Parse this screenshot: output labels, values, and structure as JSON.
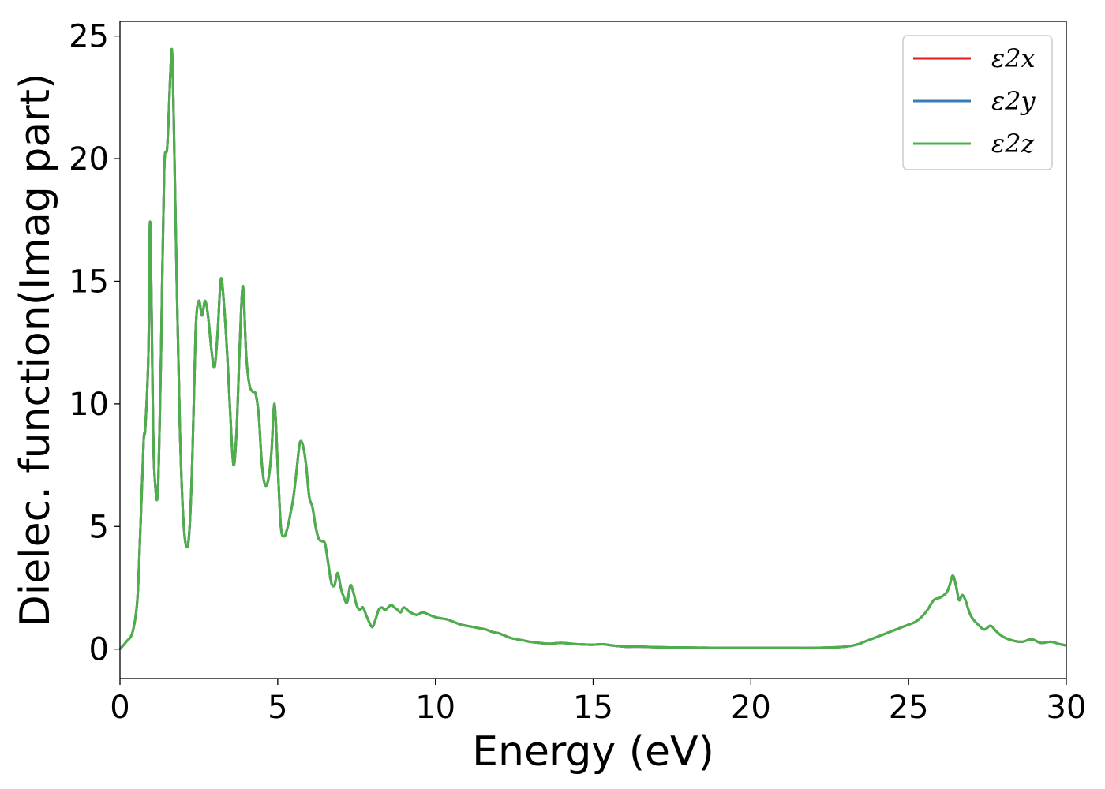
{
  "chart_data": {
    "type": "line",
    "title": "",
    "xlabel": "Energy (eV)",
    "ylabel": "Dielec. function(Imag part)",
    "xlim": [
      0,
      30
    ],
    "ylim": [
      -1.2,
      25.6
    ],
    "xticks": [
      0,
      5,
      10,
      15,
      20,
      25,
      30
    ],
    "yticks": [
      0,
      5,
      10,
      15,
      20,
      25
    ],
    "grid": false,
    "legend_position": "upper-right",
    "series": [
      {
        "name": "ε2x",
        "color": "#e41a1c"
      },
      {
        "name": "ε2y",
        "color": "#377eb8"
      },
      {
        "name": "ε2z",
        "color": "#4daf4a"
      }
    ],
    "x": [
      0,
      0.2,
      0.4,
      0.55,
      0.65,
      0.75,
      0.8,
      0.9,
      0.95,
      1.0,
      1.05,
      1.1,
      1.2,
      1.3,
      1.4,
      1.5,
      1.6,
      1.65,
      1.7,
      1.8,
      1.9,
      2.0,
      2.1,
      2.2,
      2.3,
      2.4,
      2.5,
      2.6,
      2.7,
      2.8,
      2.9,
      3.0,
      3.1,
      3.2,
      3.3,
      3.4,
      3.5,
      3.6,
      3.7,
      3.8,
      3.9,
      4.0,
      4.1,
      4.2,
      4.3,
      4.4,
      4.5,
      4.6,
      4.7,
      4.8,
      4.9,
      5.0,
      5.1,
      5.2,
      5.3,
      5.4,
      5.5,
      5.6,
      5.7,
      5.8,
      5.9,
      6.0,
      6.1,
      6.2,
      6.3,
      6.4,
      6.5,
      6.6,
      6.7,
      6.8,
      6.9,
      7.0,
      7.1,
      7.2,
      7.3,
      7.4,
      7.5,
      7.6,
      7.7,
      7.8,
      7.9,
      8.0,
      8.1,
      8.2,
      8.3,
      8.4,
      8.5,
      8.6,
      8.7,
      8.8,
      8.9,
      9.0,
      9.2,
      9.4,
      9.6,
      9.8,
      10.0,
      10.2,
      10.4,
      10.6,
      10.8,
      11.0,
      11.2,
      11.4,
      11.6,
      11.8,
      12.0,
      12.2,
      12.4,
      12.6,
      12.8,
      13.0,
      13.3,
      13.6,
      14.0,
      14.5,
      15.0,
      15.3,
      15.6,
      16.0,
      16.5,
      17.0,
      18.0,
      19.0,
      20.0,
      21.0,
      22.0,
      23.0,
      23.4,
      23.6,
      23.8,
      24.0,
      24.2,
      24.4,
      24.6,
      24.8,
      25.0,
      25.2,
      25.4,
      25.6,
      25.8,
      26.0,
      26.2,
      26.3,
      26.4,
      26.5,
      26.6,
      26.7,
      26.8,
      26.9,
      27.0,
      27.2,
      27.4,
      27.6,
      27.8,
      28.0,
      28.3,
      28.6,
      28.9,
      29.2,
      29.5,
      29.8,
      30.0
    ],
    "y": [
      0.0,
      0.3,
      0.7,
      2.0,
      5.0,
      8.5,
      9.0,
      12.0,
      17.4,
      14.0,
      9.0,
      7.0,
      6.4,
      12.0,
      19.5,
      20.5,
      23.5,
      24.4,
      22.0,
      15.0,
      9.0,
      5.5,
      4.2,
      4.8,
      8.0,
      13.0,
      14.2,
      13.6,
      14.2,
      13.5,
      12.2,
      11.5,
      13.0,
      15.1,
      14.0,
      12.0,
      9.5,
      7.5,
      9.0,
      12.5,
      14.8,
      12.0,
      10.8,
      10.5,
      10.4,
      9.5,
      7.5,
      6.7,
      6.9,
      8.0,
      10.0,
      7.5,
      5.0,
      4.6,
      4.9,
      5.5,
      6.2,
      7.3,
      8.4,
      8.3,
      7.5,
      6.2,
      5.8,
      5.0,
      4.5,
      4.4,
      4.3,
      3.5,
      2.7,
      2.6,
      3.1,
      2.5,
      2.1,
      1.9,
      2.6,
      2.3,
      1.8,
      1.6,
      1.7,
      1.4,
      1.1,
      0.9,
      1.2,
      1.6,
      1.7,
      1.6,
      1.7,
      1.8,
      1.7,
      1.6,
      1.5,
      1.7,
      1.5,
      1.4,
      1.5,
      1.4,
      1.3,
      1.25,
      1.2,
      1.1,
      1.0,
      0.95,
      0.9,
      0.85,
      0.8,
      0.7,
      0.65,
      0.55,
      0.45,
      0.4,
      0.35,
      0.3,
      0.25,
      0.22,
      0.25,
      0.2,
      0.18,
      0.2,
      0.15,
      0.1,
      0.1,
      0.08,
      0.06,
      0.05,
      0.05,
      0.05,
      0.05,
      0.1,
      0.2,
      0.3,
      0.4,
      0.5,
      0.6,
      0.7,
      0.8,
      0.9,
      1.0,
      1.1,
      1.3,
      1.6,
      2.0,
      2.1,
      2.3,
      2.6,
      3.0,
      2.6,
      2.0,
      2.2,
      2.0,
      1.6,
      1.3,
      1.0,
      0.8,
      0.95,
      0.7,
      0.5,
      0.35,
      0.3,
      0.4,
      0.25,
      0.3,
      0.2,
      0.15
    ]
  }
}
